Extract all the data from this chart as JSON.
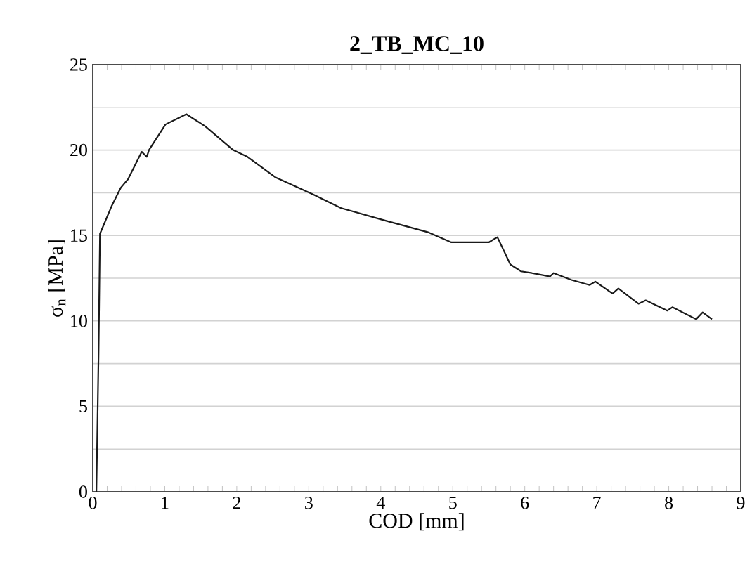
{
  "chart_data": {
    "type": "line",
    "title": "2_TB_MC_10",
    "xlabel": "COD [mm]",
    "ylabel": "σ$_{n}$ [MPa]",
    "xlim": [
      0,
      9
    ],
    "ylim": [
      0,
      25
    ],
    "xticks": [
      0,
      {
        "value": 0.2,
        "label": null
      },
      {
        "value": 0.4,
        "label": null
      },
      {
        "value": 0.6,
        "label": null
      },
      {
        "value": 0.8,
        "label": null
      },
      1,
      {
        "value": 1.2,
        "label": null
      },
      {
        "value": 1.4,
        "label": null
      },
      {
        "value": 1.6,
        "label": null
      },
      {
        "value": 1.8,
        "label": null
      },
      2,
      {
        "value": 2.2,
        "label": null
      },
      {
        "value": 2.4,
        "label": null
      },
      {
        "value": 2.6,
        "label": null
      },
      {
        "value": 2.8,
        "label": null
      },
      3,
      {
        "value": 3.2,
        "label": null
      },
      {
        "value": 3.4,
        "label": null
      },
      {
        "value": 3.6,
        "label": null
      },
      {
        "value": 3.8,
        "label": null
      },
      4,
      {
        "value": 4.2,
        "label": null
      },
      {
        "value": 4.4,
        "label": null
      },
      {
        "value": 4.6,
        "label": null
      },
      {
        "value": 4.8,
        "label": null
      },
      5,
      {
        "value": 5.2,
        "label": null
      },
      {
        "value": 5.4,
        "label": null
      },
      {
        "value": 5.6,
        "label": null
      },
      {
        "value": 5.8,
        "label": null
      },
      6,
      {
        "value": 6.2,
        "label": null
      },
      {
        "value": 6.4,
        "label": null
      },
      {
        "value": 6.6,
        "label": null
      },
      {
        "value": 6.8,
        "label": null
      },
      7,
      {
        "value": 7.2,
        "label": null
      },
      {
        "value": 7.4,
        "label": null
      },
      {
        "value": 7.6,
        "label": null
      },
      {
        "value": 7.8,
        "label": null
      },
      8,
      {
        "value": 8.2,
        "label": null
      },
      {
        "value": 8.4,
        "label": null
      },
      {
        "value": 8.6,
        "label": null
      },
      {
        "value": 8.8,
        "label": null
      },
      9
    ],
    "yticks": [
      0,
      {
        "value": 2.5,
        "label": null
      },
      5,
      {
        "value": 7.5,
        "label": null
      },
      10,
      {
        "value": 12.5,
        "label": null
      },
      15,
      {
        "value": 17.5,
        "label": null
      },
      20,
      {
        "value": 22.5,
        "label": null
      },
      25
    ],
    "grid": "y",
    "marker": "none",
    "line_style": "solid",
    "x": [
      0.05,
      0.08,
      0.1,
      0.26,
      0.39,
      0.49,
      0.68,
      0.75,
      0.78,
      1.01,
      1.3,
      1.56,
      1.95,
      2.15,
      2.54,
      3.06,
      3.45,
      4.04,
      4.65,
      4.98,
      5.5,
      5.58,
      5.62,
      5.8,
      5.95,
      6.1,
      6.35,
      6.4,
      6.65,
      6.9,
      6.98,
      7.22,
      7.3,
      7.58,
      7.68,
      7.98,
      8.05,
      8.38,
      8.47,
      8.6
    ],
    "series": [
      {
        "color": "#1a1a1a",
        "values": [
          0,
          8,
          15.1,
          16.7,
          17.8,
          18.3,
          19.9,
          19.6,
          20.0,
          21.5,
          22.1,
          21.4,
          20.0,
          19.6,
          18.4,
          17.4,
          16.6,
          15.9,
          15.2,
          14.6,
          14.6,
          14.8,
          14.9,
          13.3,
          12.9,
          12.8,
          12.6,
          12.8,
          12.4,
          12.1,
          12.3,
          11.6,
          11.9,
          11.0,
          11.2,
          10.6,
          10.8,
          10.1,
          10.5,
          10.1
        ]
      }
    ]
  }
}
